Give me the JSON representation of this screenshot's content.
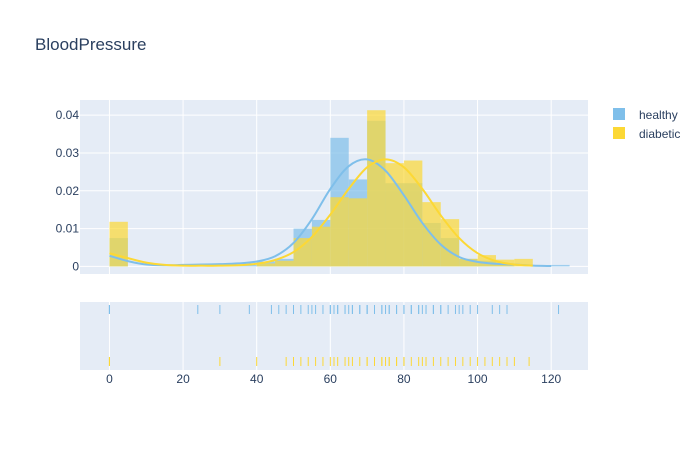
{
  "chart_data": {
    "type": "distplot",
    "title": "BloodPressure",
    "legend": {
      "placement": "top-right"
    },
    "bin_size": 5,
    "x_range": [
      -8,
      130
    ],
    "x_ticks": [
      0,
      20,
      40,
      60,
      80,
      100,
      120
    ],
    "y_range": [
      -0.002,
      0.044
    ],
    "y_ticks": [
      0,
      0.01,
      0.02,
      0.03,
      0.04
    ],
    "y_tick_labels": [
      "0",
      "0.01",
      "0.02",
      "0.03",
      "0.04"
    ],
    "grid": true,
    "series": [
      {
        "name": "healthy",
        "color": "#7fbfea",
        "histogram": [
          {
            "x0": 0,
            "x1": 5,
            "density": 0.0075
          },
          {
            "x0": 20,
            "x1": 25,
            "density": 0.0004
          },
          {
            "x0": 30,
            "x1": 35,
            "density": 0.0004
          },
          {
            "x0": 35,
            "x1": 40,
            "density": 0.0004
          },
          {
            "x0": 40,
            "x1": 45,
            "density": 0.0013
          },
          {
            "x0": 45,
            "x1": 50,
            "density": 0.002
          },
          {
            "x0": 50,
            "x1": 55,
            "density": 0.01
          },
          {
            "x0": 55,
            "x1": 60,
            "density": 0.0123
          },
          {
            "x0": 60,
            "x1": 65,
            "density": 0.034
          },
          {
            "x0": 65,
            "x1": 70,
            "density": 0.023
          },
          {
            "x0": 70,
            "x1": 75,
            "density": 0.0385
          },
          {
            "x0": 75,
            "x1": 80,
            "density": 0.022
          },
          {
            "x0": 80,
            "x1": 85,
            "density": 0.022
          },
          {
            "x0": 85,
            "x1": 90,
            "density": 0.0115
          },
          {
            "x0": 90,
            "x1": 95,
            "density": 0.0075
          },
          {
            "x0": 95,
            "x1": 100,
            "density": 0.002
          },
          {
            "x0": 100,
            "x1": 105,
            "density": 0.0015
          },
          {
            "x0": 105,
            "x1": 110,
            "density": 0.0008
          },
          {
            "x0": 120,
            "x1": 125,
            "density": 0.0004
          }
        ],
        "kde": [
          [
            0,
            0.0028
          ],
          [
            5,
            0.0014
          ],
          [
            10,
            0.0005
          ],
          [
            15,
            0.0003
          ],
          [
            20,
            0.0004
          ],
          [
            25,
            0.0005
          ],
          [
            30,
            0.0006
          ],
          [
            35,
            0.0008
          ],
          [
            40,
            0.0013
          ],
          [
            45,
            0.0027
          ],
          [
            50,
            0.0062
          ],
          [
            55,
            0.0125
          ],
          [
            60,
            0.0205
          ],
          [
            65,
            0.0265
          ],
          [
            70,
            0.0283
          ],
          [
            75,
            0.0253
          ],
          [
            80,
            0.0188
          ],
          [
            85,
            0.0115
          ],
          [
            90,
            0.0058
          ],
          [
            95,
            0.0025
          ],
          [
            100,
            0.0012
          ],
          [
            105,
            0.0007
          ],
          [
            110,
            0.0005
          ],
          [
            115,
            0.0002
          ],
          [
            120,
            0.0001
          ]
        ],
        "rug": [
          0,
          0,
          0,
          0,
          24,
          30,
          38,
          44,
          46,
          48,
          50,
          50,
          52,
          54,
          55,
          56,
          58,
          60,
          60,
          61,
          62,
          62,
          64,
          64,
          65,
          66,
          66,
          68,
          68,
          70,
          70,
          70,
          72,
          72,
          74,
          74,
          75,
          76,
          76,
          78,
          78,
          80,
          80,
          82,
          82,
          84,
          84,
          85,
          86,
          86,
          88,
          88,
          90,
          90,
          92,
          94,
          95,
          96,
          98,
          100,
          104,
          106,
          108,
          122
        ]
      },
      {
        "name": "diabetic",
        "color": "#fcd835",
        "histogram": [
          {
            "x0": 0,
            "x1": 5,
            "density": 0.0118
          },
          {
            "x0": 40,
            "x1": 45,
            "density": 0.0008
          },
          {
            "x0": 45,
            "x1": 50,
            "density": 0.0015
          },
          {
            "x0": 50,
            "x1": 55,
            "density": 0.0075
          },
          {
            "x0": 55,
            "x1": 60,
            "density": 0.0105
          },
          {
            "x0": 60,
            "x1": 65,
            "density": 0.0183
          },
          {
            "x0": 65,
            "x1": 70,
            "density": 0.018
          },
          {
            "x0": 70,
            "x1": 75,
            "density": 0.0413
          },
          {
            "x0": 75,
            "x1": 80,
            "density": 0.0273
          },
          {
            "x0": 80,
            "x1": 85,
            "density": 0.028
          },
          {
            "x0": 85,
            "x1": 90,
            "density": 0.017
          },
          {
            "x0": 90,
            "x1": 95,
            "density": 0.0125
          },
          {
            "x0": 95,
            "x1": 100,
            "density": 0.002
          },
          {
            "x0": 100,
            "x1": 105,
            "density": 0.003
          },
          {
            "x0": 105,
            "x1": 110,
            "density": 0.0018
          },
          {
            "x0": 110,
            "x1": 115,
            "density": 0.002
          }
        ],
        "kde": [
          [
            0,
            0.0035
          ],
          [
            5,
            0.0022
          ],
          [
            10,
            0.001
          ],
          [
            15,
            0.0004
          ],
          [
            20,
            0.0002
          ],
          [
            25,
            0.0002
          ],
          [
            30,
            0.0002
          ],
          [
            35,
            0.0003
          ],
          [
            40,
            0.0007
          ],
          [
            45,
            0.0017
          ],
          [
            50,
            0.0038
          ],
          [
            55,
            0.0078
          ],
          [
            60,
            0.0137
          ],
          [
            65,
            0.0205
          ],
          [
            70,
            0.0262
          ],
          [
            75,
            0.0283
          ],
          [
            80,
            0.0262
          ],
          [
            85,
            0.0205
          ],
          [
            90,
            0.0135
          ],
          [
            95,
            0.0075
          ],
          [
            100,
            0.0035
          ],
          [
            105,
            0.0014
          ],
          [
            110,
            0.0005
          ],
          [
            115,
            0.0002
          ]
        ],
        "rug": [
          0,
          0,
          0,
          30,
          40,
          48,
          50,
          52,
          54,
          56,
          58,
          60,
          61,
          62,
          64,
          65,
          66,
          68,
          70,
          70,
          72,
          74,
          74,
          75,
          76,
          76,
          78,
          78,
          80,
          80,
          82,
          84,
          85,
          86,
          86,
          88,
          90,
          92,
          94,
          96,
          98,
          100,
          102,
          104,
          106,
          108,
          110,
          114
        ]
      }
    ]
  }
}
